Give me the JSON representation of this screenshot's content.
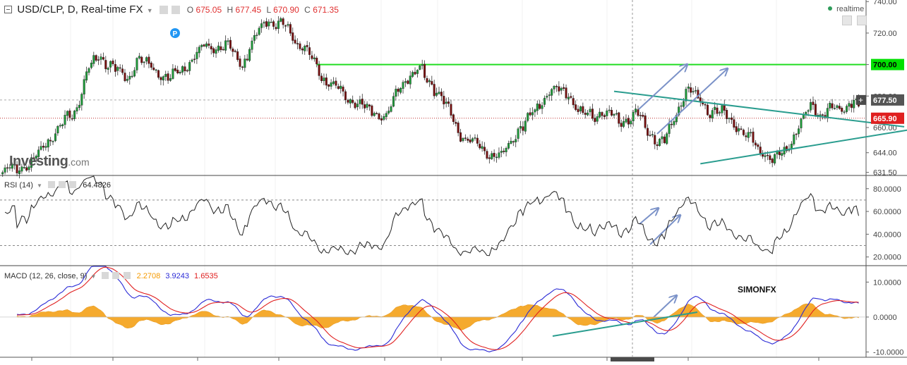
{
  "header": {
    "title": "USD/CLP, D, Real-time FX",
    "ohlc": [
      {
        "label": "O",
        "value": "675.05"
      },
      {
        "label": "H",
        "value": "677.45"
      },
      {
        "label": "L",
        "value": "670.90"
      },
      {
        "label": "C",
        "value": "671.35"
      }
    ],
    "realtime_label": "realtime",
    "ohlc_color": "#e03030",
    "realtime_dot_color": "#2e9c5a"
  },
  "watermark": {
    "brand": "Investing",
    "suffix": ".com"
  },
  "signature": "SIMONFX",
  "chart_data": [
    {
      "type": "candlestick",
      "pane": "price",
      "ylim": [
        630,
        741
      ],
      "y_ticks": [
        "740.00",
        "720.00",
        "700.00",
        "680.00",
        "660.00",
        "644.00",
        "631.50"
      ],
      "y_tick_values": [
        740,
        720,
        700,
        680,
        660,
        644,
        631.5
      ],
      "price_labels": [
        {
          "text": "700.00",
          "value": 700,
          "color": "#00e000"
        },
        {
          "text": "677.50",
          "value": 677.5,
          "color": "#555555"
        },
        {
          "text": "665.90",
          "value": 665.9,
          "color": "#e02020"
        }
      ],
      "close_anchors": [
        [
          0,
          631
        ],
        [
          12,
          637
        ],
        [
          20,
          654
        ],
        [
          30,
          670
        ],
        [
          35,
          694
        ],
        [
          40,
          705
        ],
        [
          45,
          700
        ],
        [
          52,
          690
        ],
        [
          56,
          704
        ],
        [
          65,
          696
        ],
        [
          70,
          690
        ],
        [
          76,
          699
        ],
        [
          85,
          712
        ],
        [
          95,
          710
        ],
        [
          100,
          700
        ],
        [
          104,
          713
        ],
        [
          110,
          729
        ],
        [
          116,
          725
        ],
        [
          125,
          712
        ],
        [
          133,
          693
        ],
        [
          140,
          684
        ],
        [
          145,
          678
        ],
        [
          152,
          671
        ],
        [
          160,
          668
        ],
        [
          168,
          692
        ],
        [
          174,
          696
        ],
        [
          182,
          682
        ],
        [
          190,
          658
        ],
        [
          198,
          648
        ],
        [
          208,
          640
        ],
        [
          213,
          655
        ],
        [
          222,
          670
        ],
        [
          228,
          683
        ],
        [
          236,
          682
        ],
        [
          242,
          666
        ],
        [
          250,
          670
        ],
        [
          258,
          663
        ],
        [
          264,
          670
        ],
        [
          270,
          656
        ],
        [
          276,
          650
        ],
        [
          282,
          673
        ],
        [
          285,
          685
        ],
        [
          294,
          672
        ],
        [
          303,
          666
        ],
        [
          310,
          655
        ],
        [
          316,
          647
        ],
        [
          321,
          637
        ],
        [
          324,
          641
        ],
        [
          332,
          659
        ],
        [
          337,
          675
        ],
        [
          342,
          668
        ],
        [
          347,
          671
        ],
        [
          353,
          676
        ],
        [
          358,
          672
        ]
      ],
      "support_level": 700.0,
      "trendline_upper": [
        [
          255,
          683
        ],
        [
          376,
          660.5
        ]
      ],
      "trendline_lower": [
        [
          291,
          637
        ],
        [
          384,
          660
        ]
      ]
    },
    {
      "type": "line",
      "pane": "rsi",
      "title": "RSI (14)",
      "value_label": "64.4826",
      "ylim": [
        13,
        91
      ],
      "y_ticks": [
        "80.0000",
        "60.0000",
        "40.0000",
        "20.0000"
      ],
      "y_tick_values": [
        80,
        60,
        40,
        20
      ],
      "bands": [
        70,
        30
      ]
    },
    {
      "type": "line",
      "pane": "macd",
      "title": "MACD (12, 26, close, 9)",
      "values": [
        {
          "text": "2.2708",
          "color": "#f59a00"
        },
        {
          "text": "3.9243",
          "color": "#2a2ad6"
        },
        {
          "text": "1.6535",
          "color": "#e02020"
        }
      ],
      "ylim": [
        -11.5,
        14.5
      ],
      "y_ticks": [
        "10.0000",
        "0.0000",
        "-10.0000"
      ],
      "y_tick_values": [
        10,
        0,
        -10
      ]
    }
  ]
}
